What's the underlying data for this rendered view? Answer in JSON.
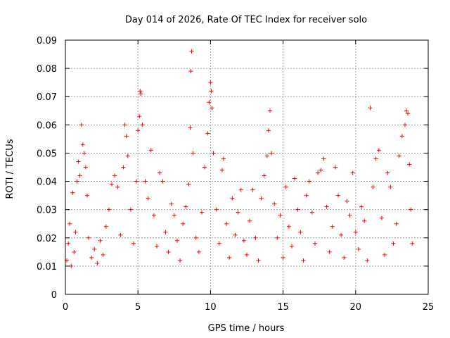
{
  "chart_data": {
    "type": "scatter",
    "title": "Day 014 of 2026, Rate Of TEC Index for receiver solo",
    "xlabel": "GPS time / hours",
    "ylabel": "ROTI / TECUs",
    "xlim": [
      0,
      25
    ],
    "ylim": [
      0,
      0.09
    ],
    "xticks": [
      0,
      5,
      10,
      15,
      20,
      25
    ],
    "yticks": [
      0,
      0.01,
      0.02,
      0.03,
      0.04,
      0.05,
      0.06,
      0.07,
      0.08,
      0.09
    ],
    "xtick_labels": [
      "0",
      "5",
      "10",
      "15",
      "20",
      "25"
    ],
    "ytick_labels": [
      "0",
      "0.01",
      "0.02",
      "0.03",
      "0.04",
      "0.05",
      "0.06",
      "0.07",
      "0.08",
      "0.09"
    ],
    "grid": true,
    "marker": "+",
    "color": "#ff0000",
    "series": [
      {
        "name": "ROTI",
        "points": [
          [
            0.1,
            0.012
          ],
          [
            0.2,
            0.018
          ],
          [
            0.3,
            0.025
          ],
          [
            0.4,
            0.01
          ],
          [
            0.5,
            0.036
          ],
          [
            0.6,
            0.015
          ],
          [
            0.7,
            0.022
          ],
          [
            0.8,
            0.04
          ],
          [
            0.9,
            0.047
          ],
          [
            1.0,
            0.042
          ],
          [
            1.1,
            0.06
          ],
          [
            1.2,
            0.053
          ],
          [
            1.3,
            0.05
          ],
          [
            1.4,
            0.045
          ],
          [
            1.5,
            0.035
          ],
          [
            1.6,
            0.02
          ],
          [
            1.8,
            0.013
          ],
          [
            2.0,
            0.016
          ],
          [
            2.2,
            0.011
          ],
          [
            2.4,
            0.019
          ],
          [
            2.6,
            0.014
          ],
          [
            2.8,
            0.024
          ],
          [
            3.0,
            0.03
          ],
          [
            3.2,
            0.039
          ],
          [
            3.4,
            0.042
          ],
          [
            3.6,
            0.038
          ],
          [
            3.8,
            0.021
          ],
          [
            4.0,
            0.045
          ],
          [
            4.1,
            0.06
          ],
          [
            4.2,
            0.056
          ],
          [
            4.3,
            0.049
          ],
          [
            4.5,
            0.03
          ],
          [
            4.7,
            0.018
          ],
          [
            4.9,
            0.04
          ],
          [
            5.0,
            0.058
          ],
          [
            5.1,
            0.063
          ],
          [
            5.15,
            0.072
          ],
          [
            5.2,
            0.071
          ],
          [
            5.3,
            0.06
          ],
          [
            5.5,
            0.04
          ],
          [
            5.7,
            0.034
          ],
          [
            5.9,
            0.051
          ],
          [
            6.1,
            0.028
          ],
          [
            6.3,
            0.017
          ],
          [
            6.5,
            0.043
          ],
          [
            6.7,
            0.04
          ],
          [
            6.9,
            0.022
          ],
          [
            7.1,
            0.015
          ],
          [
            7.3,
            0.032
          ],
          [
            7.5,
            0.028
          ],
          [
            7.7,
            0.019
          ],
          [
            7.9,
            0.012
          ],
          [
            8.1,
            0.025
          ],
          [
            8.3,
            0.031
          ],
          [
            8.5,
            0.039
          ],
          [
            8.6,
            0.059
          ],
          [
            8.65,
            0.079
          ],
          [
            8.7,
            0.086
          ],
          [
            8.8,
            0.05
          ],
          [
            9.0,
            0.02
          ],
          [
            9.2,
            0.015
          ],
          [
            9.4,
            0.029
          ],
          [
            9.6,
            0.045
          ],
          [
            9.8,
            0.057
          ],
          [
            9.9,
            0.068
          ],
          [
            10.0,
            0.075
          ],
          [
            10.05,
            0.072
          ],
          [
            10.1,
            0.066
          ],
          [
            10.2,
            0.05
          ],
          [
            10.4,
            0.03
          ],
          [
            10.6,
            0.018
          ],
          [
            10.8,
            0.044
          ],
          [
            10.9,
            0.048
          ],
          [
            11.1,
            0.025
          ],
          [
            11.3,
            0.013
          ],
          [
            11.5,
            0.034
          ],
          [
            11.7,
            0.021
          ],
          [
            11.9,
            0.029
          ],
          [
            12.1,
            0.037
          ],
          [
            12.3,
            0.019
          ],
          [
            12.5,
            0.014
          ],
          [
            12.7,
            0.026
          ],
          [
            12.9,
            0.037
          ],
          [
            13.1,
            0.02
          ],
          [
            13.3,
            0.012
          ],
          [
            13.5,
            0.034
          ],
          [
            13.7,
            0.042
          ],
          [
            13.9,
            0.049
          ],
          [
            14.0,
            0.058
          ],
          [
            14.1,
            0.065
          ],
          [
            14.2,
            0.05
          ],
          [
            14.4,
            0.032
          ],
          [
            14.6,
            0.02
          ],
          [
            14.8,
            0.028
          ],
          [
            15.0,
            0.013
          ],
          [
            15.2,
            0.038
          ],
          [
            15.4,
            0.024
          ],
          [
            15.6,
            0.017
          ],
          [
            15.8,
            0.041
          ],
          [
            16.0,
            0.03
          ],
          [
            16.2,
            0.022
          ],
          [
            16.4,
            0.012
          ],
          [
            16.6,
            0.035
          ],
          [
            16.8,
            0.04
          ],
          [
            17.0,
            0.029
          ],
          [
            17.2,
            0.018
          ],
          [
            17.4,
            0.043
          ],
          [
            17.6,
            0.044
          ],
          [
            17.8,
            0.048
          ],
          [
            18.0,
            0.031
          ],
          [
            18.2,
            0.015
          ],
          [
            18.4,
            0.024
          ],
          [
            18.6,
            0.045
          ],
          [
            18.8,
            0.035
          ],
          [
            19.0,
            0.021
          ],
          [
            19.2,
            0.013
          ],
          [
            19.4,
            0.033
          ],
          [
            19.6,
            0.028
          ],
          [
            19.8,
            0.043
          ],
          [
            20.0,
            0.022
          ],
          [
            20.2,
            0.016
          ],
          [
            20.4,
            0.031
          ],
          [
            20.6,
            0.026
          ],
          [
            20.8,
            0.012
          ],
          [
            21.0,
            0.066
          ],
          [
            21.2,
            0.038
          ],
          [
            21.4,
            0.048
          ],
          [
            21.6,
            0.051
          ],
          [
            21.8,
            0.027
          ],
          [
            22.0,
            0.014
          ],
          [
            22.2,
            0.043
          ],
          [
            22.4,
            0.038
          ],
          [
            22.6,
            0.018
          ],
          [
            22.8,
            0.025
          ],
          [
            23.0,
            0.049
          ],
          [
            23.2,
            0.056
          ],
          [
            23.4,
            0.06
          ],
          [
            23.5,
            0.065
          ],
          [
            23.6,
            0.064
          ],
          [
            23.7,
            0.046
          ],
          [
            23.8,
            0.03
          ],
          [
            23.9,
            0.018
          ]
        ]
      }
    ]
  }
}
